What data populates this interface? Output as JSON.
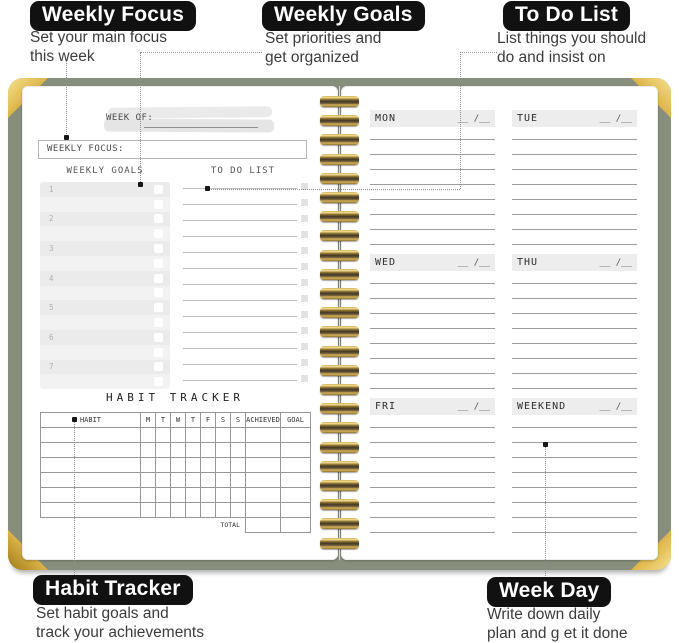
{
  "callouts": {
    "weekly_focus": {
      "label": "Weekly Focus",
      "description": "Set your main focus\nthis week"
    },
    "weekly_goals": {
      "label": "Weekly Goals",
      "description": "Set priorities and\nget organized"
    },
    "to_do_list": {
      "label": "To Do List",
      "description": "List things you should\ndo and insist on"
    },
    "habit_tracker": {
      "label": "Habit Tracker",
      "description": "Set habit goals and\ntrack your achievements"
    },
    "week_day": {
      "label": "Week Day",
      "description": "Write down daily\nplan and g et it done"
    }
  },
  "left_page": {
    "week_of_label": "WEEK OF:",
    "weekly_focus_label": "WEEKLY FOCUS:",
    "weekly_goals_title": "WEEKLY GOALS",
    "todo_title": "TO DO LIST",
    "goal_numbers": [
      "1",
      "2",
      "3",
      "4",
      "5",
      "6",
      "7"
    ],
    "todo_line_count": 13,
    "habit_tracker": {
      "title": "HABIT TRACKER",
      "columns": [
        "HABIT",
        "M",
        "T",
        "W",
        "T",
        "F",
        "S",
        "S",
        "ACHIEVED",
        "GOAL"
      ],
      "body_rows": 6,
      "total_label": "TOTAL"
    }
  },
  "right_page": {
    "lines_per_day": 8,
    "days": [
      {
        "label": "MON",
        "date": "__ /__"
      },
      {
        "label": "TUE",
        "date": "__ /__"
      },
      {
        "label": "WED",
        "date": "__ /__"
      },
      {
        "label": "THU",
        "date": "__ /__"
      },
      {
        "label": "FRI",
        "date": "__ /__"
      },
      {
        "label": "WEEKEND",
        "date": "__ /__"
      }
    ]
  },
  "colors": {
    "cover": "#878e7c",
    "gold": "#e0b94e",
    "badge_bg": "#111111",
    "badge_text": "#ffffff",
    "page": "#ffffff",
    "header_bar": "#ededed",
    "goals_panel": "#f2f2f2",
    "leader": "#8f8f8f"
  }
}
